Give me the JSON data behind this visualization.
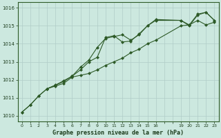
{
  "background_color": "#cce8df",
  "grid_color": "#b0ccc8",
  "line_color": "#2d5a27",
  "title": "Graphe pression niveau de la mer (hPa)",
  "xlim": [
    -0.5,
    23.5
  ],
  "ylim": [
    1009.7,
    1016.3
  ],
  "xtick_positions": [
    0,
    1,
    2,
    3,
    4,
    5,
    6,
    7,
    8,
    9,
    10,
    11,
    12,
    13,
    14,
    15,
    16,
    19,
    20,
    21,
    22,
    23
  ],
  "xtick_labels": [
    "0",
    "1",
    "2",
    "3",
    "4",
    "5",
    "6",
    "7",
    "8",
    "9",
    "10",
    "11",
    "12",
    "13",
    "14",
    "15",
    "16",
    "19",
    "20",
    "21",
    "22",
    "23"
  ],
  "yticks": [
    1010,
    1011,
    1012,
    1013,
    1014,
    1015,
    1016
  ],
  "series1_x": [
    0,
    1,
    2,
    3,
    4,
    5,
    6,
    7,
    8,
    9,
    10,
    11,
    12,
    13,
    14,
    15,
    16,
    19,
    20,
    21,
    22,
    23
  ],
  "series1_y": [
    1010.2,
    1010.6,
    1011.1,
    1011.5,
    1011.7,
    1011.9,
    1012.2,
    1012.7,
    1013.1,
    1013.8,
    1014.3,
    1014.4,
    1014.5,
    1014.2,
    1014.5,
    1015.0,
    1015.3,
    1015.3,
    1015.0,
    1015.6,
    1015.75,
    1015.3
  ],
  "series2_x": [
    0,
    1,
    2,
    3,
    4,
    5,
    6,
    7,
    8,
    9,
    10,
    11,
    12,
    13,
    14,
    15,
    16,
    19,
    20,
    21,
    22,
    23
  ],
  "series2_y": [
    1010.2,
    1010.6,
    1011.1,
    1011.5,
    1011.65,
    1011.8,
    1012.15,
    1012.25,
    1012.35,
    1012.55,
    1012.8,
    1013.0,
    1013.2,
    1013.5,
    1013.7,
    1014.0,
    1014.2,
    1015.0,
    1015.05,
    1015.3,
    1015.05,
    1015.2
  ],
  "series3_x": [
    3,
    4,
    5,
    6,
    7,
    8,
    9,
    10,
    11,
    12,
    13,
    14,
    15,
    16,
    19,
    20,
    21,
    22,
    23
  ],
  "series3_y": [
    1011.5,
    1011.7,
    1011.95,
    1012.2,
    1012.55,
    1013.0,
    1013.25,
    1014.35,
    1014.45,
    1014.1,
    1014.15,
    1014.55,
    1015.0,
    1015.35,
    1015.3,
    1015.05,
    1015.65,
    1015.75,
    1015.3
  ],
  "grid_major_x": [
    0,
    1,
    2,
    3,
    4,
    5,
    6,
    7,
    8,
    9,
    10,
    11,
    12,
    13,
    14,
    15,
    16,
    17,
    18,
    19,
    20,
    21,
    22,
    23
  ],
  "grid_major_y": [
    1010,
    1011,
    1012,
    1013,
    1014,
    1015,
    1016
  ]
}
